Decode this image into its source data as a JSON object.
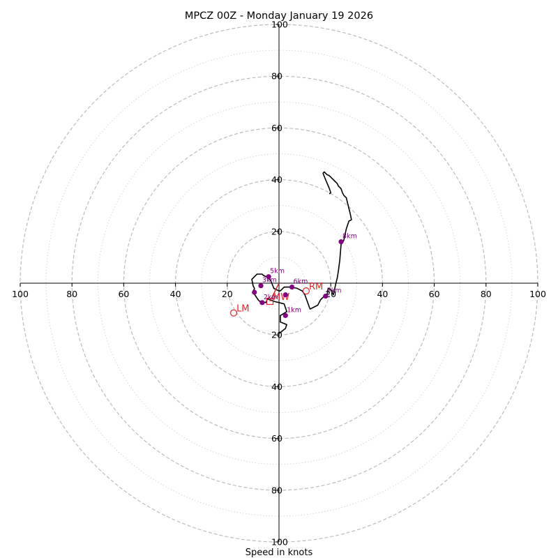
{
  "chart_data": {
    "type": "hodograph",
    "title": "MPCZ 00Z - Monday January 19 2026",
    "xlabel": "Speed in knots",
    "range": [
      -100,
      100
    ],
    "ring_major": [
      20,
      40,
      60,
      80,
      100
    ],
    "ring_minor": [
      10,
      30,
      50,
      70,
      90
    ],
    "x_tick_labels": [
      "100",
      "80",
      "60",
      "40",
      "20",
      "20",
      "40",
      "60",
      "80",
      "100"
    ],
    "y_tick_labels": [
      "100",
      "80",
      "60",
      "40",
      "20",
      "20",
      "40",
      "60",
      "80",
      "100"
    ],
    "x_tick_values": [
      -100,
      -80,
      -60,
      -40,
      -20,
      20,
      40,
      60,
      80,
      100
    ],
    "y_tick_values": [
      100,
      80,
      60,
      40,
      20,
      -20,
      -40,
      -60,
      -80,
      -100
    ],
    "colors": {
      "profile": "#000000",
      "markers": "#800080",
      "motion": "#d62728",
      "ring": "#bbbbbb",
      "axis": "#000000"
    },
    "profile": {
      "u": [
        0.0,
        2.5,
        3.0,
        0.5,
        0.5,
        3.0,
        2.0,
        -2.0,
        -4.5,
        -5.0,
        -7.5,
        -8.0,
        -10.0,
        -9.5,
        -10.0,
        -10.5,
        -9.0,
        -8.5,
        -6.5,
        -6.0,
        -5.0,
        -4.5,
        -3.0,
        -2.0,
        0.0,
        0.5,
        2.0,
        3.0,
        4.5,
        7.0,
        8.0,
        9.0,
        10.0,
        12.0,
        15.0,
        16.0,
        18.0,
        18.5,
        19.0,
        20.0,
        21.0,
        22.0,
        22.5,
        23.0,
        23.5,
        24.0,
        25.0,
        26.0,
        27.0,
        28.0,
        27.5,
        26.5,
        26.0,
        25.0,
        24.5,
        24.0,
        23.0,
        22.5,
        21.5,
        20.0,
        19.5,
        18.5,
        17.5,
        17.0,
        18.0,
        19.5,
        20.0,
        19.5
      ],
      "v": [
        -19.5,
        -17.5,
        -16.0,
        -15.0,
        -12.5,
        -11.0,
        -8.0,
        -7.0,
        -6.0,
        -7.5,
        -7.0,
        -6.5,
        -3.5,
        -2.0,
        -1.0,
        1.5,
        3.0,
        3.5,
        3.5,
        3.0,
        2.5,
        3.0,
        0.5,
        -2.0,
        -3.0,
        -3.0,
        -1.5,
        -1.5,
        -1.5,
        -2.0,
        -2.5,
        -3.0,
        -4.5,
        -10.0,
        -8.5,
        -6.5,
        -4.5,
        -5.0,
        -2.0,
        -2.5,
        -4.5,
        0.0,
        2.0,
        5.0,
        9.0,
        15.0,
        16.5,
        21.0,
        24.0,
        24.5,
        27.0,
        31.0,
        33.0,
        34.0,
        35.0,
        36.5,
        37.5,
        38.5,
        39.5,
        41.0,
        41.5,
        42.0,
        43.0,
        42.5,
        40.0,
        36.5,
        35.0,
        34.5
      ]
    },
    "height_markers": [
      {
        "label": "1km",
        "u": 2.5,
        "v": -12.5
      },
      {
        "label": "",
        "u": 2.5,
        "v": -4.5
      },
      {
        "label": "2km",
        "u": -6.5,
        "v": -7.5
      },
      {
        "label": "",
        "u": -9.5,
        "v": -3.5
      },
      {
        "label": "3km",
        "u": -7.0,
        "v": -1.0
      },
      {
        "label": "5km",
        "u": -4.0,
        "v": 2.5
      },
      {
        "label": "6km",
        "u": 5.0,
        "v": -1.5
      },
      {
        "label": "7km",
        "u": 18.0,
        "v": -5.0
      },
      {
        "label": "8km",
        "u": 24.0,
        "v": 16.0
      }
    ],
    "storm_motion": {
      "rm": {
        "label": "RM",
        "u": 10.5,
        "v": -3.0
      },
      "lm": {
        "label": "LM",
        "u": -17.5,
        "v": -11.5
      },
      "mw": {
        "label": "MW",
        "u": -3.5,
        "v": -7.0
      },
      "shear_vector_origin": {
        "u": -3.5,
        "v": -7.0
      },
      "shear_vector_tip": {
        "u": 0.0,
        "v": 0.0
      }
    }
  }
}
